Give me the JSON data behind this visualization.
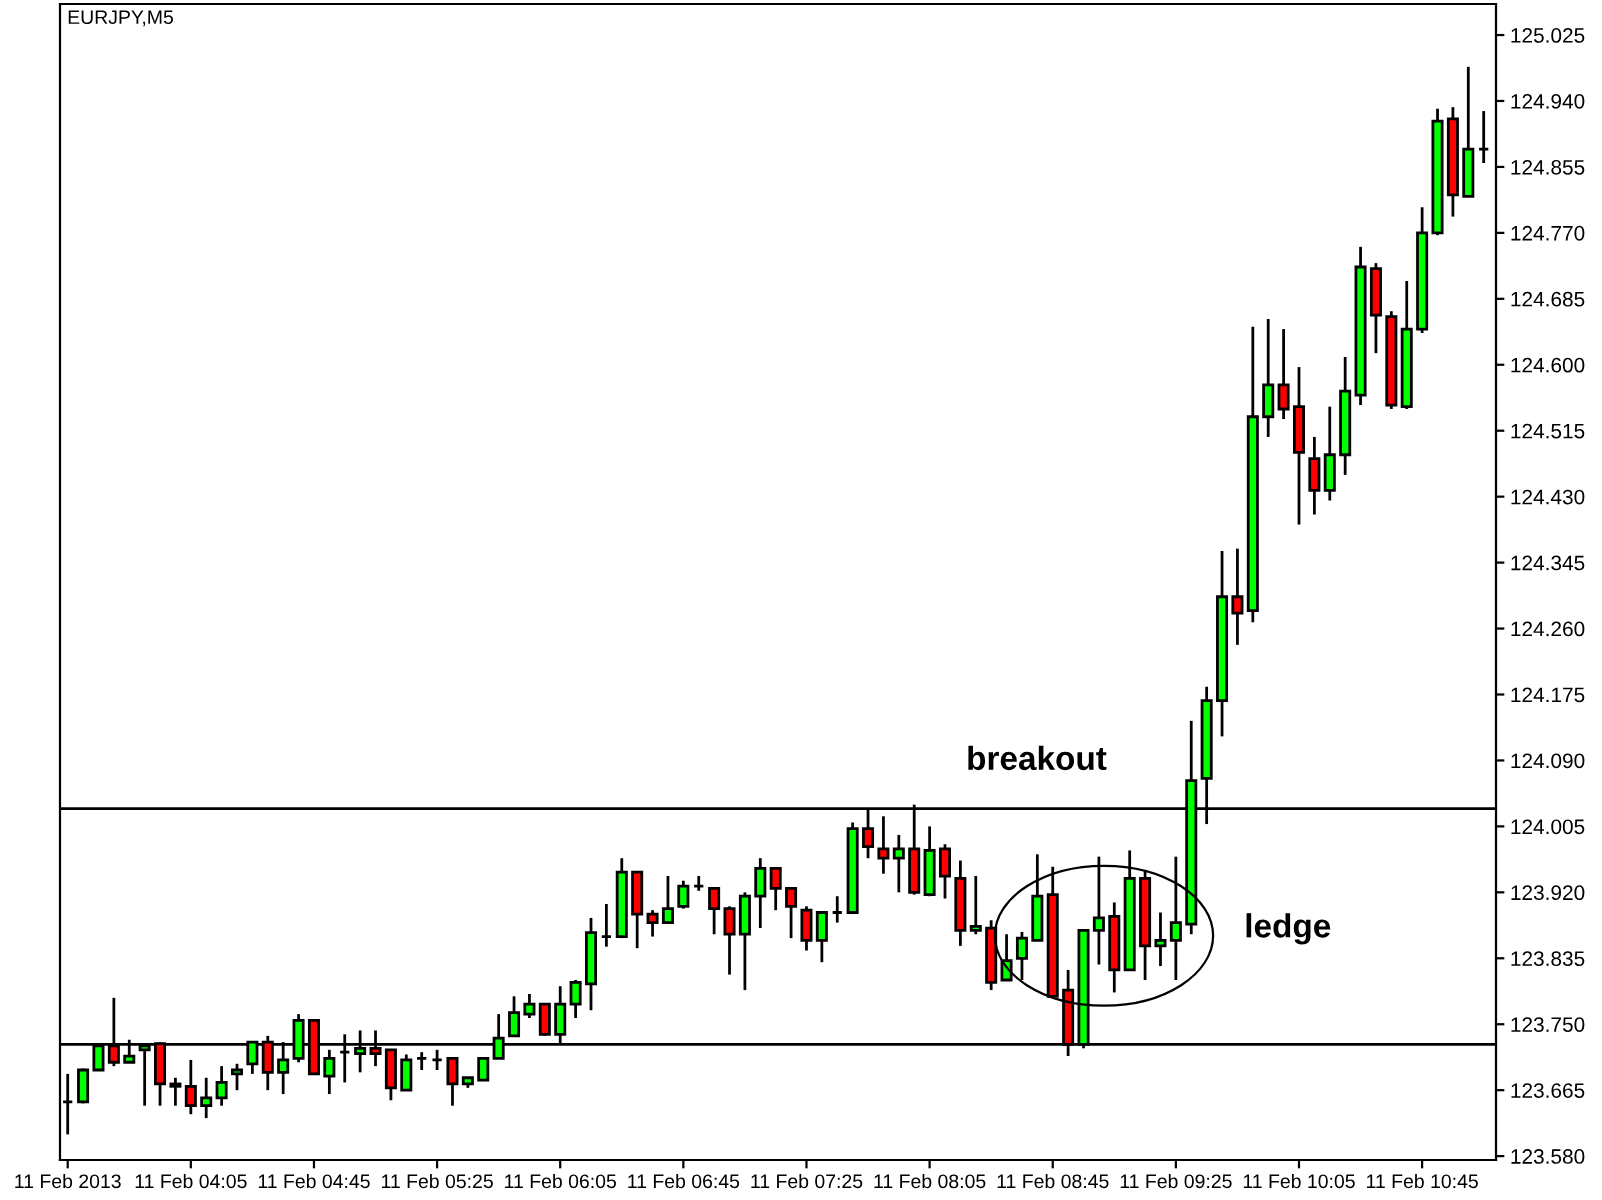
{
  "chart_data": {
    "type": "candlestick",
    "title": "EURJPY,M5",
    "categories": [
      "11 Feb 2013",
      null,
      null,
      null,
      null,
      null,
      null,
      null,
      "11 Feb 04:05",
      null,
      null,
      null,
      null,
      null,
      null,
      null,
      "11 Feb 04:45",
      null,
      null,
      null,
      null,
      null,
      null,
      null,
      "11 Feb 05:25",
      null,
      null,
      null,
      null,
      null,
      null,
      null,
      "11 Feb 06:05",
      null,
      null,
      null,
      null,
      null,
      null,
      null,
      "11 Feb 06:45",
      null,
      null,
      null,
      null,
      null,
      null,
      null,
      "11 Feb 07:25",
      null,
      null,
      null,
      null,
      null,
      null,
      null,
      "11 Feb 08:05",
      null,
      null,
      null,
      null,
      null,
      null,
      null,
      "11 Feb 08:45",
      null,
      null,
      null,
      null,
      null,
      null,
      null,
      "11 Feb 09:25",
      null,
      null,
      null,
      null,
      null,
      null,
      null,
      "11 Feb 10:05",
      null,
      null,
      null,
      null,
      null,
      null,
      null,
      "11 Feb 10:45",
      null,
      null,
      null,
      null
    ],
    "ohlc": [
      [
        123.65,
        123.686,
        123.608,
        123.65
      ],
      [
        123.65,
        123.693,
        123.648,
        123.691
      ],
      [
        123.691,
        123.722,
        123.691,
        123.722
      ],
      [
        123.722,
        123.784,
        123.696,
        123.701
      ],
      [
        123.701,
        123.73,
        123.701,
        123.709
      ],
      [
        123.717,
        123.725,
        123.645,
        123.722
      ],
      [
        123.725,
        123.727,
        123.645,
        123.673
      ],
      [
        123.673,
        123.681,
        123.645,
        123.67
      ],
      [
        123.67,
        123.704,
        123.634,
        123.645
      ],
      [
        123.645,
        123.681,
        123.629,
        123.655
      ],
      [
        123.655,
        123.696,
        123.645,
        123.675
      ],
      [
        123.686,
        123.699,
        123.665,
        123.691
      ],
      [
        123.699,
        123.727,
        123.686,
        123.727
      ],
      [
        123.727,
        123.735,
        123.665,
        123.688
      ],
      [
        123.688,
        123.727,
        123.66,
        123.704
      ],
      [
        123.706,
        123.763,
        123.701,
        123.755
      ],
      [
        123.755,
        123.755,
        123.686,
        123.686
      ],
      [
        123.683,
        123.717,
        123.66,
        123.706
      ],
      [
        123.714,
        123.737,
        123.675,
        123.714
      ],
      [
        123.712,
        123.742,
        123.688,
        123.719
      ],
      [
        123.719,
        123.742,
        123.696,
        123.712
      ],
      [
        123.717,
        123.717,
        123.652,
        123.668
      ],
      [
        123.665,
        123.711,
        123.665,
        123.704
      ],
      [
        123.706,
        123.714,
        123.691,
        123.706
      ],
      [
        123.704,
        123.717,
        123.691,
        123.704
      ],
      [
        123.706,
        123.706,
        123.645,
        123.673
      ],
      [
        123.673,
        123.681,
        123.668,
        123.681
      ],
      [
        123.678,
        123.706,
        123.678,
        123.706
      ],
      [
        123.706,
        123.763,
        123.706,
        123.732
      ],
      [
        123.735,
        123.786,
        123.735,
        123.765
      ],
      [
        123.763,
        123.789,
        123.758,
        123.776
      ],
      [
        123.776,
        123.776,
        123.735,
        123.737
      ],
      [
        123.737,
        123.799,
        123.724,
        123.776
      ],
      [
        123.776,
        123.807,
        123.758,
        123.804
      ],
      [
        123.802,
        123.887,
        123.768,
        123.868
      ],
      [
        123.863,
        123.905,
        123.85,
        123.863
      ],
      [
        123.863,
        123.964,
        123.861,
        123.946
      ],
      [
        123.946,
        123.946,
        123.848,
        123.892
      ],
      [
        123.892,
        123.897,
        123.863,
        123.881
      ],
      [
        123.881,
        123.941,
        123.881,
        123.899
      ],
      [
        123.902,
        123.935,
        123.899,
        123.928
      ],
      [
        123.928,
        123.941,
        123.922,
        123.928
      ],
      [
        123.925,
        123.925,
        123.866,
        123.899
      ],
      [
        123.899,
        123.902,
        123.814,
        123.866
      ],
      [
        123.866,
        123.92,
        123.794,
        123.915
      ],
      [
        123.915,
        123.964,
        123.874,
        123.951
      ],
      [
        123.951,
        123.951,
        123.897,
        123.925
      ],
      [
        123.925,
        123.925,
        123.861,
        123.902
      ],
      [
        123.897,
        123.902,
        123.845,
        123.858
      ],
      [
        123.858,
        123.894,
        123.83,
        123.894
      ],
      [
        123.894,
        123.915,
        123.881,
        123.894
      ],
      [
        123.894,
        124.01,
        123.892,
        124.002
      ],
      [
        124.002,
        124.028,
        123.964,
        123.979
      ],
      [
        123.976,
        124.018,
        123.944,
        123.964
      ],
      [
        123.964,
        123.994,
        123.92,
        123.976
      ],
      [
        123.976,
        124.033,
        123.917,
        123.92
      ],
      [
        123.917,
        124.005,
        123.915,
        123.974
      ],
      [
        123.976,
        123.982,
        123.912,
        123.941
      ],
      [
        123.938,
        123.961,
        123.851,
        123.871
      ],
      [
        123.871,
        123.941,
        123.866,
        123.876
      ],
      [
        123.874,
        123.884,
        123.794,
        123.804
      ],
      [
        123.807,
        123.866,
        123.807,
        123.832
      ],
      [
        123.835,
        123.869,
        123.807,
        123.861
      ],
      [
        123.858,
        123.969,
        123.858,
        123.915
      ],
      [
        123.917,
        123.953,
        123.786,
        123.786
      ],
      [
        123.794,
        123.82,
        123.709,
        123.724
      ],
      [
        123.724,
        123.871,
        123.719,
        123.871
      ],
      [
        123.871,
        123.966,
        123.827,
        123.887
      ],
      [
        123.889,
        123.907,
        123.791,
        123.82
      ],
      [
        123.82,
        123.974,
        123.82,
        123.938
      ],
      [
        123.938,
        123.948,
        123.807,
        123.851
      ],
      [
        123.851,
        123.894,
        123.825,
        123.858
      ],
      [
        123.858,
        123.966,
        123.807,
        123.881
      ],
      [
        123.879,
        124.141,
        123.866,
        124.064
      ],
      [
        124.067,
        124.185,
        124.008,
        124.167
      ],
      [
        124.167,
        124.36,
        124.121,
        124.301
      ],
      [
        124.301,
        124.363,
        124.239,
        124.28
      ],
      [
        124.283,
        124.649,
        124.268,
        124.533
      ],
      [
        124.533,
        124.659,
        124.507,
        124.574
      ],
      [
        124.574,
        124.646,
        124.53,
        124.543
      ],
      [
        124.546,
        124.597,
        124.394,
        124.487
      ],
      [
        124.479,
        124.507,
        124.407,
        124.438
      ],
      [
        124.438,
        124.546,
        124.425,
        124.484
      ],
      [
        124.484,
        124.61,
        124.458,
        124.566
      ],
      [
        124.561,
        124.752,
        124.548,
        124.726
      ],
      [
        124.724,
        124.731,
        124.615,
        124.664
      ],
      [
        124.662,
        124.669,
        124.543,
        124.548
      ],
      [
        124.546,
        124.708,
        124.543,
        124.646
      ],
      [
        124.646,
        124.803,
        124.641,
        124.77
      ],
      [
        124.77,
        124.93,
        124.767,
        124.914
      ],
      [
        124.917,
        124.932,
        124.791,
        124.819
      ],
      [
        124.817,
        124.984,
        124.817,
        124.878
      ],
      [
        124.878,
        124.927,
        124.86,
        124.878
      ]
    ],
    "colors": [
      "#000000",
      "#00ff00",
      "#00ff00",
      "#ff0000",
      "#00ff00",
      "#00ff00",
      "#ff0000",
      "#ff0000",
      "#ff0000",
      "#00ff00",
      "#00ff00",
      "#00ff00",
      "#00ff00",
      "#ff0000",
      "#00ff00",
      "#00ff00",
      "#ff0000",
      "#00ff00",
      "#000000",
      "#00ff00",
      "#ff0000",
      "#ff0000",
      "#00ff00",
      "#000000",
      "#000000",
      "#ff0000",
      "#00ff00",
      "#00ff00",
      "#00ff00",
      "#00ff00",
      "#00ff00",
      "#ff0000",
      "#00ff00",
      "#00ff00",
      "#00ff00",
      "#000000",
      "#00ff00",
      "#ff0000",
      "#ff0000",
      "#00ff00",
      "#00ff00",
      "#000000",
      "#ff0000",
      "#ff0000",
      "#00ff00",
      "#00ff00",
      "#ff0000",
      "#ff0000",
      "#ff0000",
      "#00ff00",
      "#000000",
      "#00ff00",
      "#ff0000",
      "#ff0000",
      "#00ff00",
      "#ff0000",
      "#00ff00",
      "#ff0000",
      "#ff0000",
      "#00ff00",
      "#ff0000",
      "#00ff00",
      "#00ff00",
      "#00ff00",
      "#ff0000",
      "#ff0000",
      "#00ff00",
      "#00ff00",
      "#ff0000",
      "#00ff00",
      "#ff0000",
      "#00ff00",
      "#00ff00",
      "#00ff00",
      "#00ff00",
      "#00ff00",
      "#ff0000",
      "#00ff00",
      "#00ff00",
      "#ff0000",
      "#ff0000",
      "#ff0000",
      "#00ff00",
      "#00ff00",
      "#00ff00",
      "#ff0000",
      "#ff0000",
      "#00ff00",
      "#00ff00",
      "#00ff00",
      "#ff0000",
      "#00ff00",
      "#000000"
    ],
    "ylim": [
      123.575,
      125.065
    ],
    "yticks": [
      {
        "value": 123.58,
        "label": "123.580"
      },
      123.665,
      {
        "value": 123.75,
        "label": "123.750"
      },
      123.835,
      {
        "value": 123.92,
        "label": "123.920"
      },
      124.005,
      {
        "value": 124.09,
        "label": "124.090"
      },
      124.175,
      {
        "value": 124.26,
        "label": "124.260"
      },
      124.345,
      {
        "value": 124.43,
        "label": "124.430"
      },
      124.515,
      {
        "value": 124.6,
        "label": "124.600"
      },
      124.685,
      {
        "value": 124.77,
        "label": "124.770"
      },
      124.855,
      {
        "value": 124.94,
        "label": "124.940"
      },
      125.025
    ],
    "ref_lines": [
      {
        "axis": "y",
        "value": 124.028,
        "color": "#000000"
      },
      {
        "axis": "y",
        "value": 123.724,
        "color": "#000000"
      }
    ],
    "annotations": [
      "breakout",
      "ledge"
    ],
    "grid": false,
    "legend": false
  }
}
